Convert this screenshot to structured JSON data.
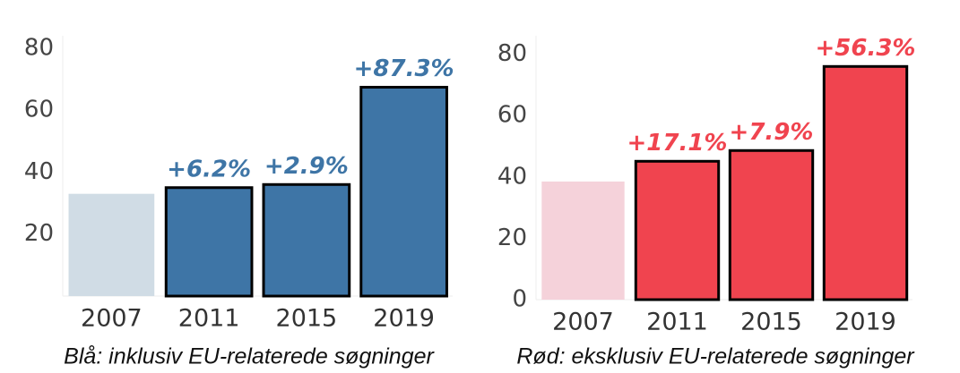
{
  "chart_data": [
    {
      "type": "bar",
      "caption": "Blå: inklusiv EU-relaterede søgninger",
      "categories": [
        "2007",
        "2011",
        "2015",
        "2019"
      ],
      "values": [
        33,
        35,
        36,
        67.4
      ],
      "value_labels": [
        null,
        "+6.2%",
        "+2.9%",
        "+87.3%"
      ],
      "colors": [
        "#d0dce5",
        "#3e75a6",
        "#3e75a6",
        "#3e75a6"
      ],
      "label_color": "#3e75a6",
      "ylim": [
        0,
        84
      ],
      "yticks": [
        20,
        40,
        60,
        80
      ],
      "grid": false
    },
    {
      "type": "bar",
      "caption": "Rød: eksklusiv EU-relaterede søgninger",
      "categories": [
        "2007",
        "2011",
        "2015",
        "2019"
      ],
      "values": [
        38.5,
        45.1,
        48.6,
        76
      ],
      "value_labels": [
        null,
        "+17.1%",
        "+7.9%",
        "+56.3%"
      ],
      "colors": [
        "#f5d2da",
        "#f0444f",
        "#f0444f",
        "#f0444f"
      ],
      "label_color": "#f0444f",
      "ylim": [
        0,
        86
      ],
      "yticks": [
        0,
        20,
        40,
        60,
        80
      ],
      "grid": false
    }
  ]
}
